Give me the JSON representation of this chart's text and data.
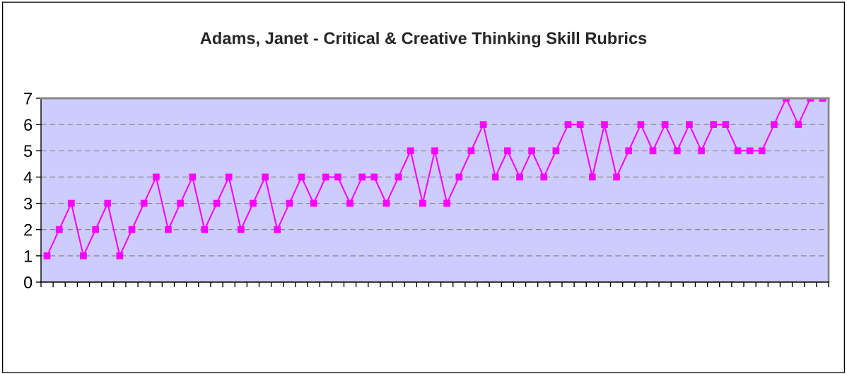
{
  "chart_data": {
    "type": "line",
    "title": "Adams, Janet - Critical & Creative Thinking Skill Rubrics",
    "categories": [
      null,
      null,
      null,
      null,
      null,
      null,
      null,
      null,
      null,
      null,
      null,
      null,
      null,
      null,
      null,
      null,
      null,
      null,
      null,
      null,
      null,
      null,
      null,
      null,
      null,
      null,
      null,
      null,
      null,
      null,
      null,
      null,
      null,
      null,
      null,
      null,
      null,
      null,
      null,
      null,
      null,
      null,
      null,
      null,
      null,
      null,
      null,
      null,
      null,
      null,
      null,
      null,
      null,
      null,
      null,
      null,
      null,
      null,
      null,
      null,
      null,
      null,
      null,
      null,
      null
    ],
    "series": [
      {
        "color": "#ff00ff",
        "values": [
          1,
          2,
          3,
          1,
          2,
          3,
          1,
          2,
          3,
          4,
          2,
          3,
          4,
          2,
          3,
          4,
          2,
          3,
          4,
          2,
          3,
          4,
          3,
          4,
          4,
          3,
          4,
          4,
          3,
          4,
          5,
          3,
          5,
          3,
          4,
          5,
          6,
          4,
          5,
          4,
          5,
          4,
          5,
          6,
          6,
          4,
          6,
          4,
          5,
          6,
          5,
          6,
          5,
          6,
          5,
          6,
          6,
          5,
          5,
          5,
          6,
          7,
          6,
          7,
          7
        ]
      }
    ],
    "ylim": [
      0,
      7
    ],
    "yticks": [
      0,
      1,
      2,
      3,
      4,
      5,
      6,
      7
    ],
    "grid": "y",
    "marker": "square",
    "line_style": "solid"
  }
}
